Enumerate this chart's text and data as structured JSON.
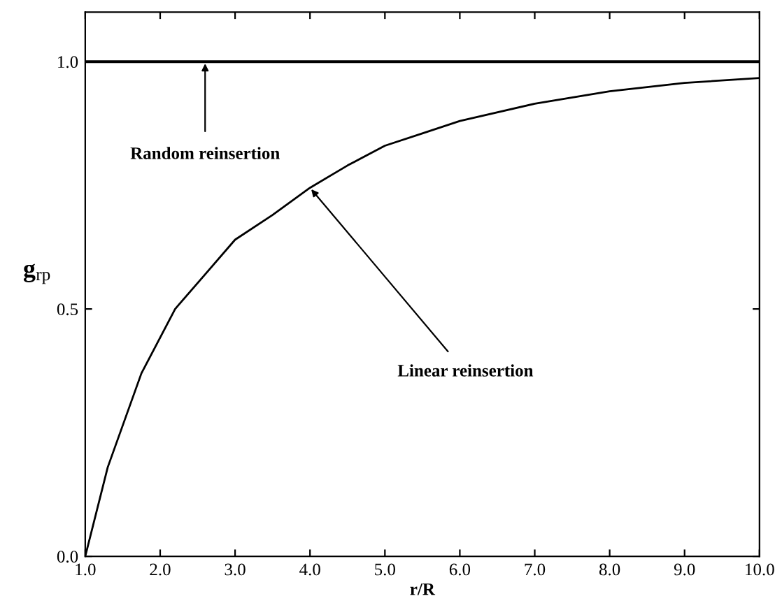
{
  "chart_data": {
    "type": "line",
    "xlabel": "r/R",
    "ylabel": "g$_{rp}$",
    "series": [
      {
        "color": "#000000",
        "x": [
          1.0,
          10.0
        ],
        "values": [
          1.0,
          1.0
        ]
      },
      {
        "color": "#000000",
        "x": [
          1.0,
          1.3,
          1.75,
          2.2,
          2.6,
          3.0,
          3.5,
          4.0,
          4.5,
          5.0,
          5.5,
          6.0,
          7.0,
          8.0,
          9.0,
          10.0
        ],
        "values": [
          0.0,
          0.18,
          0.37,
          0.5,
          0.57,
          0.64,
          0.69,
          0.745,
          0.79,
          0.83,
          0.855,
          0.88,
          0.915,
          0.94,
          0.957,
          0.967
        ]
      }
    ],
    "annotations": [
      {
        "text": "Random reinsertion",
        "x": 2.6,
        "y": 1.0
      },
      {
        "text": "Linear reinsertion",
        "x": 4.0,
        "y": 0.745
      }
    ],
    "xlim": [
      1.0,
      10.0
    ],
    "ylim": [
      0.0,
      1.1
    ],
    "xticks": [
      {
        "value": 1,
        "label": "1.0"
      },
      {
        "value": 2,
        "label": "2.0"
      },
      {
        "value": 3,
        "label": "3.0"
      },
      {
        "value": 4,
        "label": "4.0"
      },
      {
        "value": 5,
        "label": "5.0"
      },
      {
        "value": 6,
        "label": "6.0"
      },
      {
        "value": 7,
        "label": "7.0"
      },
      {
        "value": 8,
        "label": "8.0"
      },
      {
        "value": 9,
        "label": "9.0"
      },
      {
        "value": 10,
        "label": "10.0"
      }
    ],
    "yticks": [
      {
        "value": 0,
        "label": "0.0"
      },
      {
        "value": 0.5,
        "label": "0.5"
      },
      {
        "value": 1,
        "label": "1.0"
      }
    ],
    "grid": false,
    "legend": false,
    "marker": "none",
    "line_style": "solid"
  }
}
